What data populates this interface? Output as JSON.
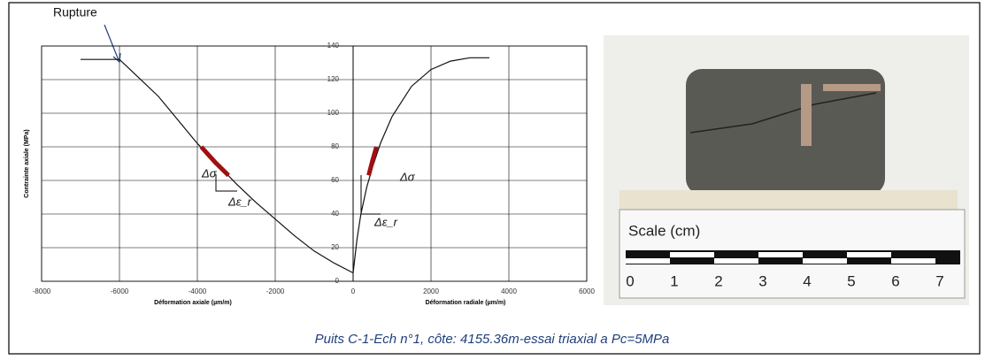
{
  "chart_data": {
    "type": "line",
    "ylabel": "Contrainte axiale (MPa)",
    "xlabels": [
      "Déformation axiale (µm/m)",
      "Déformation radiale (µm/m)"
    ],
    "xlim": [
      -8000,
      6000
    ],
    "ylim": [
      0,
      140
    ],
    "xticks": [
      -8000,
      -6000,
      -4000,
      -2000,
      0,
      2000,
      4000,
      6000
    ],
    "yticks": [
      0,
      20,
      40,
      60,
      80,
      100,
      120,
      140
    ],
    "grid": true,
    "series": [
      {
        "color": "#111111",
        "x": [
          -7000,
          -6000,
          -5500,
          -5000,
          -4500,
          -4000,
          -3500,
          -3000,
          -2500,
          -2000,
          -1500,
          -1000,
          -500,
          0
        ],
        "values": [
          132,
          132,
          121,
          110,
          96,
          82,
          70,
          58,
          47,
          37,
          27,
          18,
          11,
          5
        ]
      },
      {
        "color": "#111111",
        "x": [
          0,
          100,
          200,
          350,
          500,
          700,
          1000,
          1500,
          2000,
          2500,
          3000,
          3500
        ],
        "values": [
          5,
          25,
          40,
          56,
          68,
          82,
          98,
          116,
          126,
          131,
          133,
          133
        ]
      },
      {
        "color": "#a01010",
        "x": [
          -3900,
          -3550,
          -3200
        ],
        "values": [
          80,
          71,
          63
        ]
      },
      {
        "color": "#a01010",
        "x": [
          400,
          500,
          600
        ],
        "values": [
          63,
          72,
          80
        ]
      }
    ],
    "annotations": [
      "Rupture",
      "Δσ",
      "Δε_r",
      "Δσ",
      "Δε_r"
    ]
  },
  "photo": {
    "scale_title": "Scale  (cm)",
    "scale_numbers": [
      "0",
      "1",
      "2",
      "3",
      "4",
      "5",
      "6",
      "7"
    ]
  },
  "caption": "Puits C-1-Ech n°1, côte: 4155.36m-essai triaxial a Pc=5MPa"
}
